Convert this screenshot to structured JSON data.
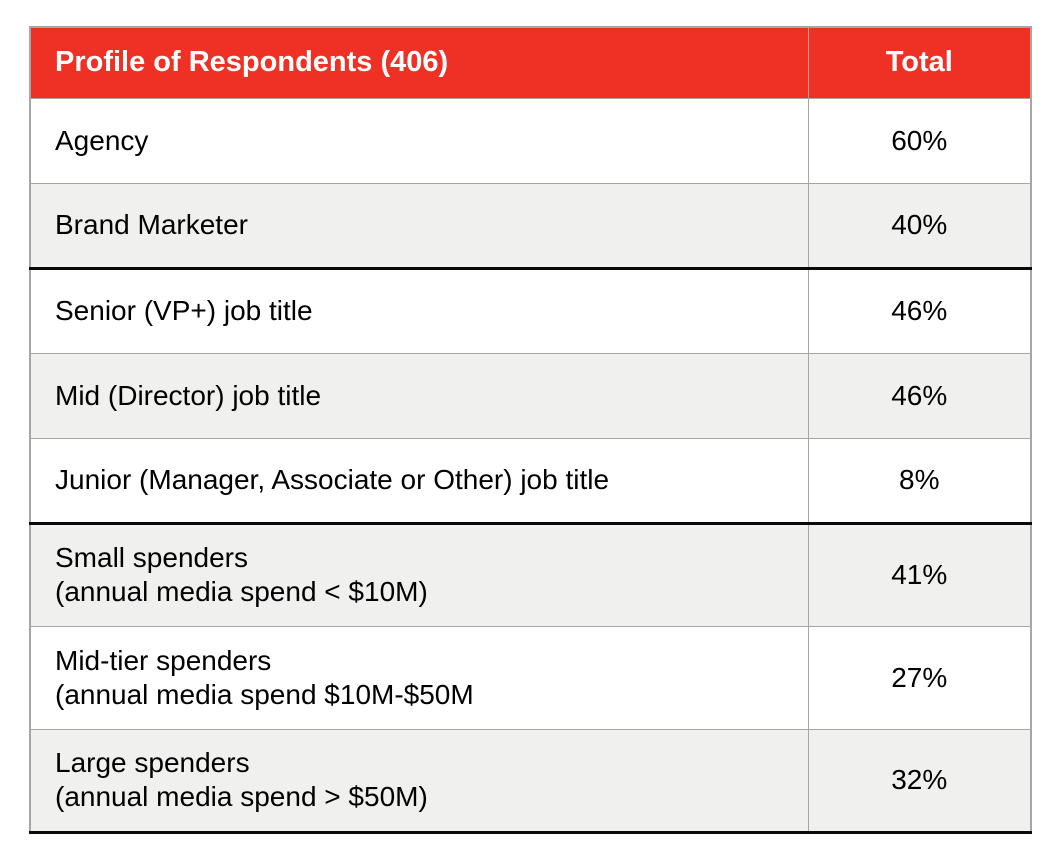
{
  "colors": {
    "header_bg": "#ee3124",
    "header_text": "#ffffff",
    "shaded_row": "#f0f0ef",
    "border_gray": "#a6a6a6",
    "border_black": "#0a0a0a"
  },
  "table": {
    "header": {
      "title": "Profile of Respondents (406)",
      "total_label": "Total"
    },
    "rows": [
      {
        "label": "Agency",
        "value": "60%",
        "shaded": false,
        "group_end": false
      },
      {
        "label": "Brand Marketer",
        "value": "40%",
        "shaded": true,
        "group_end": true
      },
      {
        "label": "Senior (VP+) job title",
        "value": "46%",
        "shaded": false,
        "group_end": false
      },
      {
        "label": "Mid (Director) job title",
        "value": "46%",
        "shaded": true,
        "group_end": false
      },
      {
        "label": "Junior (Manager, Associate or Other) job title",
        "value": "8%",
        "shaded": false,
        "group_end": true
      },
      {
        "label": "Small spenders\n(annual media spend < $10M)",
        "value": "41%",
        "shaded": true,
        "group_end": false
      },
      {
        "label": "Mid-tier spenders\n(annual media spend $10M-$50M",
        "value": "27%",
        "shaded": false,
        "group_end": false
      },
      {
        "label": "Large spenders\n(annual media spend > $50M)",
        "value": "32%",
        "shaded": true,
        "group_end": true
      }
    ]
  },
  "chart_data": {
    "type": "table",
    "title": "Profile of Respondents (406)",
    "columns": [
      "Profile of Respondents (406)",
      "Total"
    ],
    "categories": [
      "Agency",
      "Brand Marketer",
      "Senior (VP+) job title",
      "Mid (Director) job title",
      "Junior (Manager, Associate or Other) job title",
      "Small spenders (annual media spend < $10M)",
      "Mid-tier spenders (annual media spend $10M-$50M",
      "Large spenders (annual media spend > $50M)"
    ],
    "values": [
      60,
      40,
      46,
      46,
      8,
      41,
      27,
      32
    ],
    "value_unit": "%",
    "value_labels": [
      "60%",
      "40%",
      "46%",
      "46%",
      "8%",
      "41%",
      "27%",
      "32%"
    ],
    "groups": [
      {
        "name": "respondent-type",
        "rows": [
          0,
          1
        ]
      },
      {
        "name": "job-title",
        "rows": [
          2,
          3,
          4
        ]
      },
      {
        "name": "media-spend",
        "rows": [
          5,
          6,
          7
        ]
      }
    ],
    "respondent_count": 406
  }
}
